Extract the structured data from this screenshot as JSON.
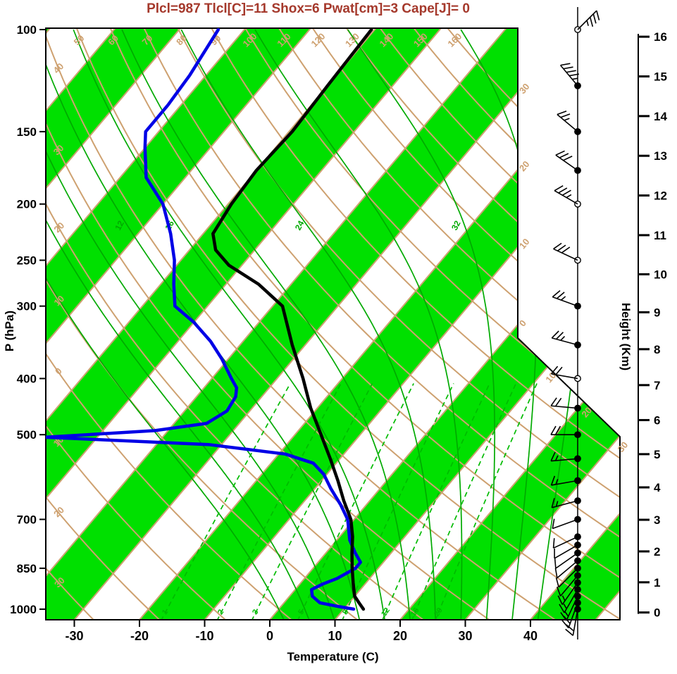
{
  "title": {
    "text": "Plcl=987 Tlcl[C]=11 Shox=6 Pwat[cm]=3 Cape[J]= 0"
  },
  "colors": {
    "title": "#a5392c",
    "band_green": "#00e000",
    "grid_tan": "#cea170",
    "moist_green": "#00aa00",
    "mixing_green": "#00bb00",
    "profile_temperature": "#000000",
    "profile_dewpoint": "#0000e6",
    "frame": "#000000"
  },
  "axes": {
    "pressure": {
      "label": "P (hPa)",
      "ticks": [
        "100",
        "150",
        "200",
        "250",
        "300",
        "400",
        "500",
        "700",
        "850",
        "1000"
      ]
    },
    "temperature": {
      "label": "Temperature (C)",
      "ticks": [
        "-30",
        "-20",
        "-10",
        "0",
        "10",
        "20",
        "30",
        "40"
      ]
    },
    "height": {
      "label": "Height (Km)",
      "ticks": [
        "0",
        "1",
        "2",
        "3",
        "4",
        "5",
        "6",
        "7",
        "8",
        "9",
        "10",
        "11",
        "12",
        "13",
        "14",
        "15",
        "16"
      ]
    }
  },
  "grid_labels": {
    "dry_adiabat_top": [
      "50",
      "60",
      "70",
      "80",
      "90",
      "100",
      "110",
      "120",
      "130",
      "140",
      "150",
      "160"
    ],
    "dry_adiabat_left": [
      {
        "theta": 40,
        "text": "40"
      },
      {
        "theta": 30,
        "text": "30"
      },
      {
        "theta": 20,
        "text": "20"
      },
      {
        "theta": 10,
        "text": "10"
      },
      {
        "theta": 0,
        "text": "0"
      },
      {
        "theta": -10,
        "text": "10"
      },
      {
        "theta": -20,
        "text": "20"
      },
      {
        "theta": -30,
        "text": "30"
      }
    ],
    "isotherm_right_upper": [
      {
        "t": -30,
        "text": "30"
      },
      {
        "t": -20,
        "text": "20"
      },
      {
        "t": -10,
        "text": "10"
      },
      {
        "t": 0,
        "text": "0"
      }
    ],
    "isotherm_right_lower": [
      {
        "t": 10,
        "text": "10"
      },
      {
        "t": 20,
        "text": "20"
      },
      {
        "t": 30,
        "text": "30"
      }
    ],
    "moist_adiabat": [
      {
        "thw": 12,
        "text": "12"
      },
      {
        "thw": 16,
        "text": "16"
      },
      {
        "thw": 24,
        "text": "24"
      },
      {
        "thw": 32,
        "text": "32"
      }
    ],
    "mixing_ratio": [
      {
        "w": 1,
        "text": "1"
      },
      {
        "w": 2,
        "text": "2"
      },
      {
        "w": 3,
        "text": "3"
      },
      {
        "w": 5,
        "text": "5"
      },
      {
        "w": 8,
        "text": "8"
      },
      {
        "w": 12,
        "text": "12"
      },
      {
        "w": 16,
        "text": "16"
      },
      {
        "w": 20,
        "text": "20"
      }
    ]
  },
  "skewt_grid": {
    "isotherms_C": {
      "min": -160,
      "max": 60,
      "step": 10
    },
    "dry_adiabats_C": {
      "min": -40,
      "max": 160,
      "step": 10
    },
    "moist_adiabats_C": [
      0,
      4,
      8,
      12,
      16,
      20,
      24,
      28,
      32,
      36,
      40
    ],
    "mixing_ratio_gkg": [
      1,
      2,
      3,
      5,
      8,
      12,
      16,
      20
    ]
  },
  "chart_data": {
    "type": "skewt-logp",
    "indices": {
      "Plcl_hPa": 987,
      "Tlcl_C": 11,
      "Shox": 6,
      "Pwat_cm": 3,
      "Cape_J": 0
    },
    "pressure_range_hPa": [
      100,
      1050
    ],
    "temperature_axis_C": [
      -35,
      45
    ],
    "temperature_profile_p_T": [
      [
        1000,
        13
      ],
      [
        975,
        11.5
      ],
      [
        950,
        10
      ],
      [
        925,
        9
      ],
      [
        900,
        8
      ],
      [
        850,
        6
      ],
      [
        800,
        4
      ],
      [
        750,
        2
      ],
      [
        700,
        -0.5
      ],
      [
        650,
        -4
      ],
      [
        600,
        -7.5
      ],
      [
        550,
        -11.5
      ],
      [
        500,
        -16
      ],
      [
        450,
        -21
      ],
      [
        400,
        -26
      ],
      [
        350,
        -32
      ],
      [
        300,
        -38.5
      ],
      [
        275,
        -45
      ],
      [
        255,
        -52
      ],
      [
        240,
        -56
      ],
      [
        225,
        -58.5
      ],
      [
        200,
        -59.5
      ],
      [
        175,
        -60
      ],
      [
        150,
        -59.5
      ],
      [
        125,
        -60
      ],
      [
        100,
        -60.5
      ]
    ],
    "dewpoint_profile_p_T": [
      [
        1000,
        11.5
      ],
      [
        990,
        9
      ],
      [
        975,
        5.5
      ],
      [
        950,
        3.5
      ],
      [
        925,
        2.5
      ],
      [
        905,
        3.5
      ],
      [
        885,
        5
      ],
      [
        850,
        6.5
      ],
      [
        830,
        6.5
      ],
      [
        800,
        4.5
      ],
      [
        760,
        2
      ],
      [
        700,
        -1
      ],
      [
        660,
        -4
      ],
      [
        620,
        -7.5
      ],
      [
        585,
        -10.5
      ],
      [
        560,
        -13.5
      ],
      [
        540,
        -19
      ],
      [
        520,
        -32
      ],
      [
        505,
        -58
      ],
      [
        492,
        -42
      ],
      [
        478,
        -35
      ],
      [
        455,
        -33.5
      ],
      [
        430,
        -34
      ],
      [
        415,
        -35
      ],
      [
        400,
        -37
      ],
      [
        370,
        -41
      ],
      [
        345,
        -45
      ],
      [
        320,
        -50
      ],
      [
        300,
        -55
      ],
      [
        275,
        -58
      ],
      [
        250,
        -61
      ],
      [
        225,
        -65
      ],
      [
        200,
        -70
      ],
      [
        180,
        -76
      ],
      [
        160,
        -80
      ],
      [
        150,
        -82
      ],
      [
        135,
        -82
      ],
      [
        120,
        -82.5
      ],
      [
        100,
        -84
      ]
    ],
    "wind_profile_p_dir_spd_open": [
      [
        1000,
        190,
        20,
        0
      ],
      [
        975,
        200,
        20,
        0
      ],
      [
        950,
        205,
        15,
        0
      ],
      [
        925,
        210,
        15,
        0
      ],
      [
        900,
        215,
        15,
        0
      ],
      [
        875,
        220,
        10,
        0
      ],
      [
        850,
        225,
        10,
        0
      ],
      [
        825,
        230,
        10,
        0
      ],
      [
        800,
        235,
        10,
        0
      ],
      [
        775,
        240,
        10,
        0
      ],
      [
        750,
        245,
        10,
        0
      ],
      [
        700,
        250,
        10,
        0
      ],
      [
        650,
        255,
        15,
        0
      ],
      [
        600,
        260,
        15,
        0
      ],
      [
        550,
        265,
        15,
        0
      ],
      [
        500,
        270,
        20,
        0
      ],
      [
        450,
        275,
        20,
        0
      ],
      [
        400,
        280,
        20,
        1
      ],
      [
        350,
        285,
        25,
        0
      ],
      [
        300,
        290,
        25,
        0
      ],
      [
        250,
        295,
        30,
        1
      ],
      [
        200,
        300,
        35,
        1
      ],
      [
        175,
        305,
        30,
        0
      ],
      [
        150,
        310,
        25,
        0
      ],
      [
        125,
        320,
        45,
        0
      ],
      [
        100,
        45,
        35,
        1
      ]
    ]
  }
}
